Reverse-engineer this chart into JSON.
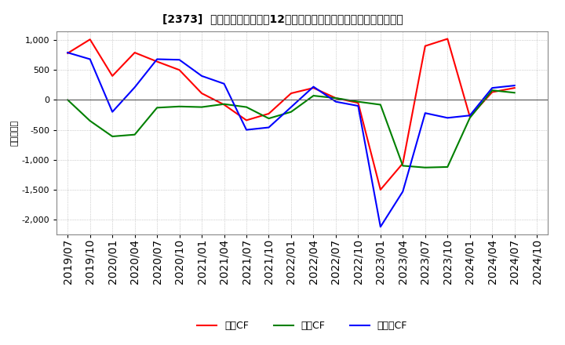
{
  "title": "[2373]  キャッシュフローの12か月移動合計の対前年同期増減額の推移",
  "ylabel": "（百万円）",
  "background_color": "#ffffff",
  "plot_bg_color": "#ffffff",
  "grid_color": "#aaaaaa",
  "xlim_labels": [
    "2019/07",
    "2019/10",
    "2020/01",
    "2020/04",
    "2020/07",
    "2020/10",
    "2021/01",
    "2021/04",
    "2021/07",
    "2021/10",
    "2022/01",
    "2022/04",
    "2022/07",
    "2022/10",
    "2023/01",
    "2023/04",
    "2023/07",
    "2023/10",
    "2024/01",
    "2024/04",
    "2024/07",
    "2024/10"
  ],
  "series": {
    "営業CF": {
      "color": "#ff0000",
      "values": [
        780,
        1010,
        400,
        790,
        640,
        500,
        110,
        -80,
        -340,
        -230,
        110,
        200,
        30,
        -50,
        -1500,
        -1060,
        900,
        1020,
        -280,
        130,
        200,
        null
      ]
    },
    "投資CF": {
      "color": "#008000",
      "values": [
        0,
        -350,
        -610,
        -580,
        -130,
        -110,
        -120,
        -70,
        -120,
        -310,
        -200,
        70,
        30,
        -30,
        -80,
        -1100,
        -1130,
        -1120,
        -300,
        160,
        120,
        null
      ]
    },
    "フリーCF": {
      "color": "#0000ff",
      "values": [
        790,
        680,
        -200,
        210,
        680,
        670,
        400,
        270,
        -500,
        -460,
        -120,
        220,
        -30,
        -100,
        -2120,
        -1530,
        -220,
        -300,
        -260,
        200,
        240,
        null
      ]
    }
  },
  "yticks": [
    -2000,
    -1500,
    -1000,
    -500,
    0,
    500,
    1000
  ],
  "ylim": [
    -2250,
    1150
  ]
}
